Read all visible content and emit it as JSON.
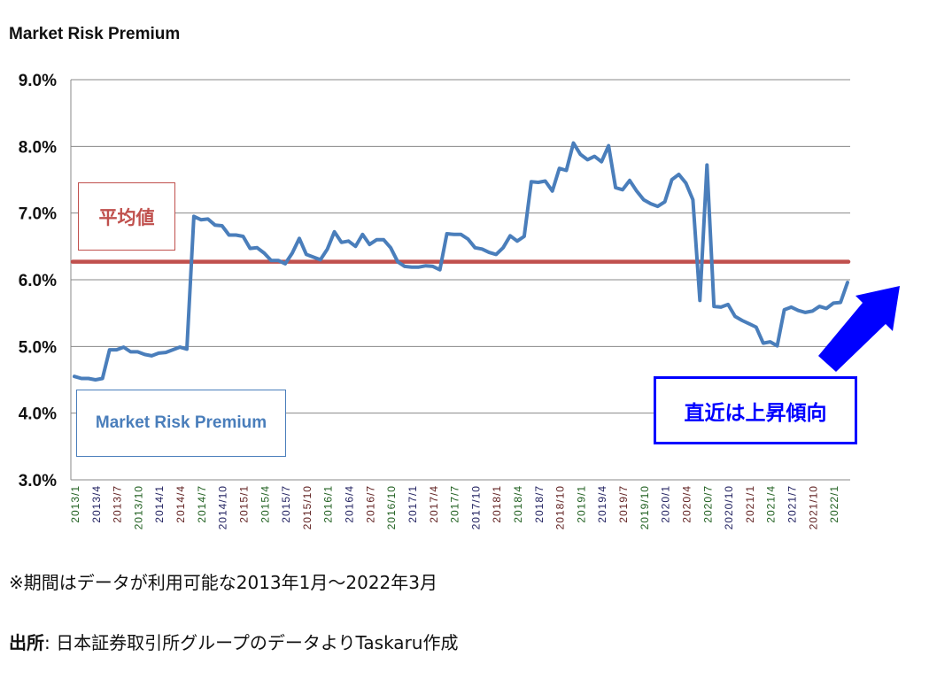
{
  "chart_data": {
    "type": "line",
    "title": "Market Risk Premium",
    "ylim": [
      3.0,
      9.0
    ],
    "y_ticks": [
      "3.0%",
      "4.0%",
      "5.0%",
      "6.0%",
      "7.0%",
      "8.0%",
      "9.0%"
    ],
    "y_tick_values": [
      3,
      4,
      5,
      6,
      7,
      8,
      9
    ],
    "grid": true,
    "x_start": "2013/1",
    "x_end": "2022/3",
    "x_tick_labels": [
      "2013/1",
      "2013/4",
      "2013/7",
      "2013/10",
      "2014/1",
      "2014/4",
      "2014/7",
      "2014/10",
      "2015/1",
      "2015/4",
      "2015/7",
      "2015/10",
      "2016/1",
      "2016/4",
      "2016/7",
      "2016/10",
      "2017/1",
      "2017/4",
      "2017/7",
      "2017/10",
      "2018/1",
      "2018/4",
      "2018/7",
      "2018/10",
      "2019/1",
      "2019/4",
      "2019/7",
      "2019/10",
      "2020/1",
      "2020/4",
      "2020/7",
      "2020/10",
      "2021/1",
      "2021/4",
      "2021/7",
      "2021/10",
      "2022/1"
    ],
    "series": [
      {
        "name": "Market Risk Premium",
        "color": "#4a7ebb",
        "values": [
          4.55,
          4.52,
          4.52,
          4.5,
          4.52,
          4.95,
          4.95,
          4.99,
          4.92,
          4.92,
          4.88,
          4.86,
          4.9,
          4.91,
          4.95,
          4.99,
          4.96,
          6.95,
          6.9,
          6.91,
          6.82,
          6.81,
          6.67,
          6.67,
          6.65,
          6.47,
          6.48,
          6.4,
          6.29,
          6.29,
          6.24,
          6.4,
          6.62,
          6.38,
          6.34,
          6.3,
          6.46,
          6.72,
          6.56,
          6.58,
          6.5,
          6.68,
          6.53,
          6.6,
          6.6,
          6.48,
          6.27,
          6.2,
          6.19,
          6.19,
          6.21,
          6.2,
          6.15,
          6.69,
          6.68,
          6.68,
          6.61,
          6.48,
          6.46,
          6.41,
          6.38,
          6.48,
          6.66,
          6.58,
          6.65,
          7.47,
          7.46,
          7.48,
          7.33,
          7.67,
          7.64,
          8.05,
          7.88,
          7.8,
          7.85,
          7.77,
          8.01,
          7.38,
          7.35,
          7.49,
          7.33,
          7.2,
          7.14,
          7.1,
          7.17,
          7.5,
          7.58,
          7.45,
          7.2,
          5.69,
          7.72,
          5.6,
          5.59,
          5.63,
          5.45,
          5.39,
          5.34,
          5.29,
          5.05,
          5.07,
          5.01,
          5.55,
          5.59,
          5.54,
          5.51,
          5.53,
          5.6,
          5.57,
          5.65,
          5.66,
          5.96
        ]
      },
      {
        "name": "平均値",
        "color": "#c0504d",
        "constant": 6.27
      }
    ],
    "annotations": {
      "average_label": "平均値",
      "series_label": "Market Risk Premium",
      "trend_label": "直近は上昇傾向",
      "trend_color": "#0000ff"
    }
  },
  "notes": {
    "period": "※期間はデータが利用可能な2013年1月～2022年3月",
    "source_prefix": "出所",
    "source_text": ": 日本証券取引所グループのデータよりTaskaru作成"
  }
}
